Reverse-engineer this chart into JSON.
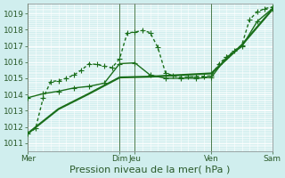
{
  "title": "",
  "xlabel": "Pression niveau de la mer( hPa )",
  "ylabel": "",
  "background_color": "#d0eeee",
  "plot_bg_color": "#c8e8e8",
  "grid_color": "#ffffff",
  "minor_grid_color": "#ddf0f0",
  "line_color": "#1a6e1a",
  "ylim": [
    1010.5,
    1019.6
  ],
  "xlim": [
    0,
    96
  ],
  "x_tick_positions": [
    0,
    36,
    42,
    72,
    96
  ],
  "x_tick_labels": [
    "Mer",
    "Dim",
    "Jeu",
    "Ven",
    "Sam"
  ],
  "y_tick_positions": [
    1011,
    1012,
    1013,
    1014,
    1015,
    1016,
    1017,
    1018,
    1019
  ],
  "line1_x": [
    0,
    3,
    6,
    9,
    12,
    15,
    18,
    21,
    24,
    27,
    30,
    33,
    36,
    39,
    42,
    45,
    48,
    51,
    54,
    57,
    60,
    63,
    66,
    69,
    72,
    75,
    78,
    81,
    84,
    87,
    90,
    93,
    96
  ],
  "line1_y": [
    1011.6,
    1011.9,
    1013.8,
    1014.8,
    1014.85,
    1015.0,
    1015.2,
    1015.5,
    1015.9,
    1015.85,
    1015.75,
    1015.65,
    1016.2,
    1017.8,
    1017.85,
    1017.95,
    1017.82,
    1016.9,
    1015.35,
    1015.15,
    1015.05,
    1015.08,
    1015.1,
    1015.12,
    1015.15,
    1015.9,
    1016.3,
    1016.7,
    1017.05,
    1018.6,
    1019.1,
    1019.3,
    1019.4
  ],
  "line2_x": [
    0,
    6,
    12,
    18,
    24,
    30,
    36,
    42,
    48,
    54,
    60,
    66,
    72,
    78,
    84,
    90,
    96
  ],
  "line2_y": [
    1013.8,
    1014.05,
    1014.2,
    1014.4,
    1014.5,
    1014.7,
    1015.9,
    1015.95,
    1015.2,
    1015.0,
    1015.0,
    1015.0,
    1015.05,
    1016.3,
    1016.95,
    1018.5,
    1019.3
  ],
  "line3_x": [
    0,
    12,
    24,
    36,
    48,
    60,
    72,
    84,
    96
  ],
  "line3_y": [
    1011.6,
    1013.1,
    1014.05,
    1015.05,
    1015.1,
    1015.2,
    1015.3,
    1017.05,
    1019.25
  ],
  "marker_size1": 4,
  "marker_size2": 4,
  "linewidth1": 1.0,
  "linewidth2": 1.0,
  "linewidth3": 1.6,
  "font_size_tick": 6.5,
  "font_size_xlabel": 8,
  "vline_positions": [
    0,
    36,
    42,
    72,
    96
  ]
}
